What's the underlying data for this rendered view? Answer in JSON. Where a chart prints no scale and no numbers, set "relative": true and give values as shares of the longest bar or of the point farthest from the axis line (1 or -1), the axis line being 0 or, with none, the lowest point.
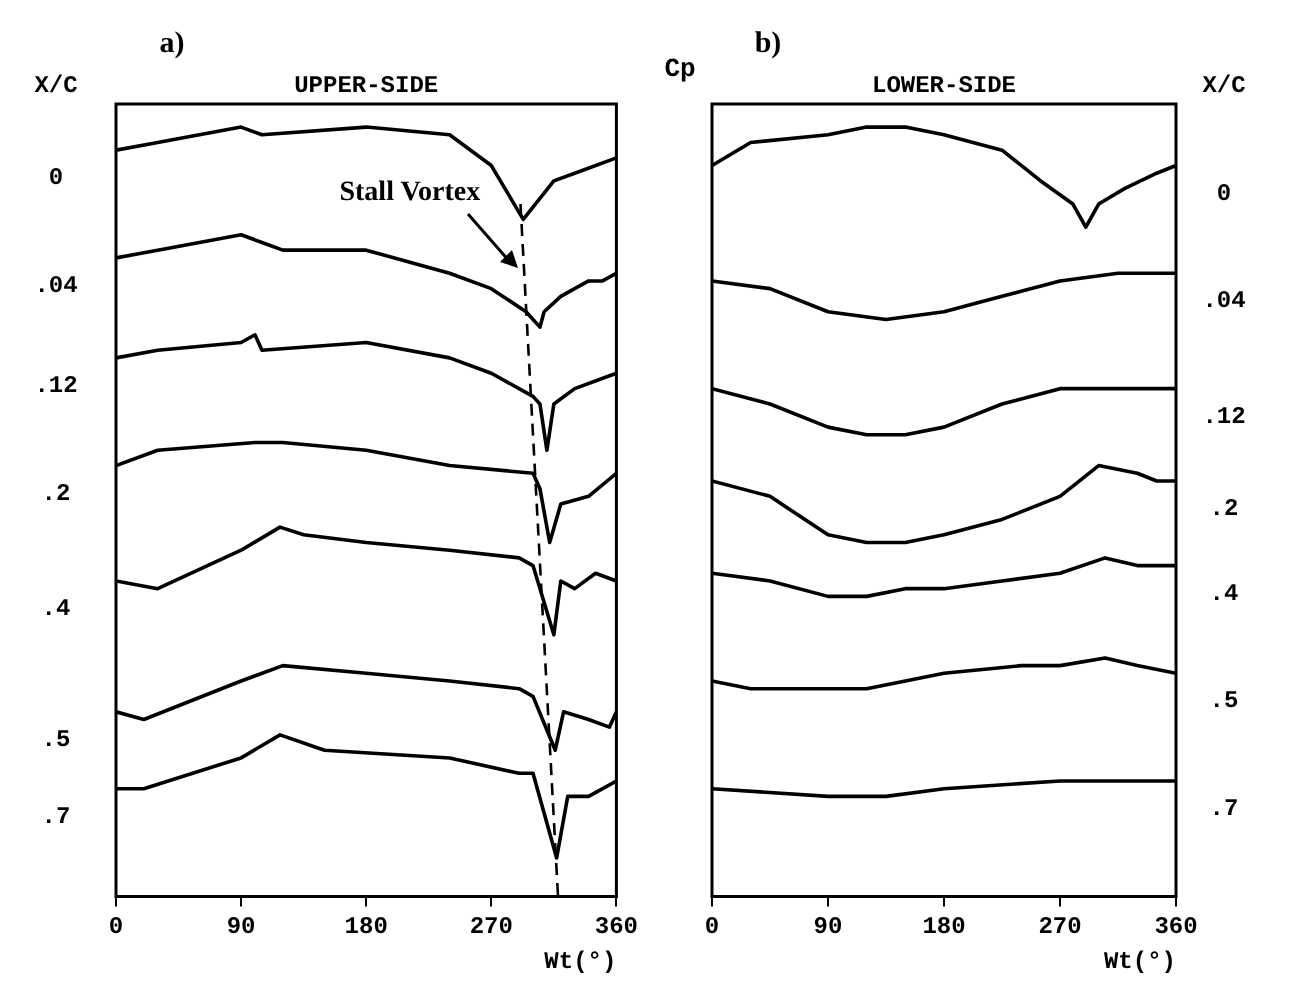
{
  "chart_data": [
    {
      "type": "line",
      "title": "a)",
      "subtitle": "UPPER-SIDE",
      "xlabel": "Wt(°)",
      "legend_title": "X/C",
      "relative": true,
      "xlim": [
        0,
        360
      ],
      "xticks": [
        0,
        90,
        180,
        270,
        360
      ],
      "grid": false,
      "legend": false,
      "marker": "none",
      "line_style": "solid",
      "annotations": [
        "Stall Vortex"
      ],
      "series": [
        {
          "name": "0",
          "color": "#000000",
          "x": [
            0,
            30,
            90,
            105,
            180,
            240,
            270,
            293,
            315,
            330,
            360
          ],
          "values": [
            0.97,
            0.98,
            1.0,
            0.99,
            1.0,
            0.99,
            0.95,
            0.88,
            0.93,
            0.94,
            0.96
          ]
        },
        {
          "name": ".04",
          "color": "#000000",
          "x": [
            0,
            30,
            90,
            105,
            120,
            180,
            240,
            270,
            295,
            305,
            308,
            320,
            340,
            350,
            360
          ],
          "values": [
            0.83,
            0.84,
            0.86,
            0.85,
            0.84,
            0.84,
            0.81,
            0.79,
            0.76,
            0.74,
            0.76,
            0.78,
            0.8,
            0.8,
            0.81
          ]
        },
        {
          "name": ".12",
          "color": "#000000",
          "x": [
            0,
            30,
            90,
            100,
            105,
            180,
            240,
            270,
            300,
            305,
            310,
            315,
            330,
            360
          ],
          "values": [
            0.7,
            0.71,
            0.72,
            0.73,
            0.71,
            0.72,
            0.7,
            0.68,
            0.65,
            0.64,
            0.58,
            0.64,
            0.66,
            0.68
          ]
        },
        {
          "name": ".2",
          "color": "#000000",
          "x": [
            0,
            30,
            100,
            120,
            180,
            240,
            300,
            305,
            312,
            320,
            340,
            360
          ],
          "values": [
            0.56,
            0.58,
            0.59,
            0.59,
            0.58,
            0.56,
            0.55,
            0.53,
            0.46,
            0.51,
            0.52,
            0.55
          ]
        },
        {
          "name": ".4",
          "color": "#000000",
          "x": [
            0,
            30,
            90,
            118,
            135,
            180,
            240,
            290,
            300,
            315,
            320,
            330,
            345,
            360
          ],
          "values": [
            0.41,
            0.4,
            0.45,
            0.48,
            0.47,
            0.46,
            0.45,
            0.44,
            0.43,
            0.34,
            0.41,
            0.4,
            0.42,
            0.41
          ]
        },
        {
          "name": ".5",
          "color": "#000000",
          "x": [
            0,
            20,
            90,
            120,
            180,
            240,
            290,
            300,
            316,
            322,
            340,
            355,
            360
          ],
          "values": [
            0.24,
            0.23,
            0.28,
            0.3,
            0.29,
            0.28,
            0.27,
            0.26,
            0.19,
            0.24,
            0.23,
            0.22,
            0.24
          ]
        },
        {
          "name": ".7",
          "color": "#000000",
          "x": [
            0,
            20,
            90,
            118,
            150,
            240,
            290,
            300,
            317,
            325,
            340,
            360
          ],
          "values": [
            0.14,
            0.14,
            0.18,
            0.21,
            0.19,
            0.18,
            0.16,
            0.16,
            0.05,
            0.13,
            0.13,
            0.15
          ]
        },
        {
          "color": "#000000",
          "line_style": "dashed",
          "x": [
            291,
            318
          ],
          "values": [
            0.9,
            0.0
          ]
        }
      ]
    },
    {
      "type": "line",
      "title": "b)",
      "subtitle": "LOWER-SIDE",
      "xlabel": "Wt(°)",
      "ylabel": "Cp",
      "legend_title": "X/C",
      "relative": true,
      "xlim": [
        0,
        360
      ],
      "xticks": [
        0,
        90,
        180,
        270,
        360
      ],
      "grid": false,
      "legend": false,
      "marker": "none",
      "line_style": "solid",
      "series": [
        {
          "name": "0",
          "color": "#000000",
          "x": [
            0,
            30,
            90,
            120,
            150,
            180,
            225,
            255,
            280,
            290,
            300,
            320,
            345,
            360
          ],
          "values": [
            0.95,
            0.98,
            0.99,
            1.0,
            1.0,
            0.99,
            0.97,
            0.93,
            0.9,
            0.87,
            0.9,
            0.92,
            0.94,
            0.95
          ]
        },
        {
          "name": ".04",
          "color": "#000000",
          "x": [
            0,
            45,
            90,
            135,
            180,
            225,
            270,
            315,
            360
          ],
          "values": [
            0.8,
            0.79,
            0.76,
            0.75,
            0.76,
            0.78,
            0.8,
            0.81,
            0.81
          ]
        },
        {
          "name": ".12",
          "color": "#000000",
          "x": [
            0,
            45,
            90,
            120,
            150,
            180,
            225,
            270,
            300,
            330,
            360
          ],
          "values": [
            0.66,
            0.64,
            0.61,
            0.6,
            0.6,
            0.61,
            0.64,
            0.66,
            0.66,
            0.66,
            0.66
          ]
        },
        {
          "name": ".2",
          "color": "#000000",
          "x": [
            0,
            45,
            90,
            120,
            150,
            180,
            225,
            270,
            300,
            330,
            345,
            360
          ],
          "values": [
            0.54,
            0.52,
            0.47,
            0.46,
            0.46,
            0.47,
            0.49,
            0.52,
            0.56,
            0.55,
            0.54,
            0.54
          ]
        },
        {
          "name": ".4",
          "color": "#000000",
          "x": [
            0,
            45,
            90,
            120,
            150,
            180,
            225,
            270,
            305,
            330,
            360
          ],
          "values": [
            0.42,
            0.41,
            0.39,
            0.39,
            0.4,
            0.4,
            0.41,
            0.42,
            0.44,
            0.43,
            0.43
          ]
        },
        {
          "name": ".5",
          "color": "#000000",
          "x": [
            0,
            30,
            90,
            120,
            150,
            180,
            240,
            270,
            305,
            330,
            360
          ],
          "values": [
            0.28,
            0.27,
            0.27,
            0.27,
            0.28,
            0.29,
            0.3,
            0.3,
            0.31,
            0.3,
            0.29
          ]
        },
        {
          "name": ".7",
          "color": "#000000",
          "x": [
            0,
            90,
            135,
            180,
            270,
            310,
            360
          ],
          "values": [
            0.14,
            0.13,
            0.13,
            0.14,
            0.15,
            0.15,
            0.15
          ]
        }
      ]
    }
  ]
}
